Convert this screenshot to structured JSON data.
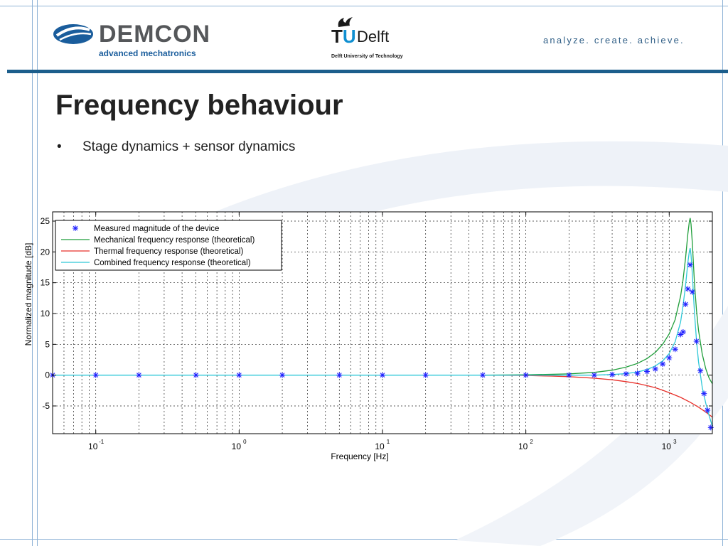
{
  "header": {
    "demcon_name": "DEMCON",
    "demcon_tagline": "advanced mechatronics",
    "tu_part": "T",
    "tu_u": "U",
    "delft_word": "Delft",
    "tu_subtitle": "Delft University of Technology",
    "tagline": "analyze. create. achieve."
  },
  "slide": {
    "title": "Frequency behaviour",
    "bullet_marker": "•",
    "bullet": "Stage dynamics + sensor dynamics"
  },
  "colors": {
    "measured": "#2020ff",
    "mechanical": "#1f9e3a",
    "thermal": "#e8302a",
    "combined": "#2ec8d8",
    "accent_bar": "#1c5e8c"
  },
  "chart_data": {
    "type": "line",
    "xscale": "log",
    "xlim": [
      0.05,
      2000
    ],
    "ylim": [
      -9.5,
      26.5
    ],
    "xlabel": "Frequency [Hz]",
    "ylabel": "Normalized magnitude [dB]",
    "grid": true,
    "legend_position": "top-left",
    "x_ticks": [
      {
        "value": 0.1,
        "base": "10",
        "exp": "-1"
      },
      {
        "value": 1,
        "base": "10",
        "exp": "0"
      },
      {
        "value": 10,
        "base": "10",
        "exp": "1"
      },
      {
        "value": 100,
        "base": "10",
        "exp": "2"
      },
      {
        "value": 1000,
        "base": "10",
        "exp": "3"
      }
    ],
    "y_ticks": [
      -5,
      0,
      5,
      10,
      15,
      20,
      25
    ],
    "series": [
      {
        "name": "Measured magnitude of the device",
        "style": "marker",
        "x": [
          0.05,
          0.1,
          0.2,
          0.5,
          1,
          2,
          5,
          10,
          20,
          50,
          100,
          200,
          300,
          400,
          500,
          600,
          700,
          800,
          900,
          1000,
          1100,
          1200,
          1250,
          1300,
          1350,
          1400,
          1450,
          1550,
          1650,
          1750,
          1850,
          1950
        ],
        "y": [
          0,
          0,
          0,
          0,
          0,
          0,
          0,
          0,
          0,
          0,
          0,
          0,
          0,
          0.1,
          0.2,
          0.3,
          0.6,
          1.0,
          1.8,
          2.8,
          4.2,
          6.6,
          7.0,
          11.5,
          14.0,
          17.9,
          13.5,
          5.5,
          0.7,
          -3.0,
          -5.7,
          -8.5
        ]
      },
      {
        "name": "Mechanical frequency response (theoretical)",
        "style": "line",
        "x": [
          50,
          100,
          200,
          300,
          400,
          500,
          600,
          700,
          800,
          900,
          1000,
          1100,
          1200,
          1250,
          1300,
          1350,
          1380,
          1400,
          1420,
          1450,
          1500,
          1550,
          1600,
          1700,
          1800,
          1900,
          2000
        ],
        "y": [
          0,
          0.05,
          0.2,
          0.45,
          0.8,
          1.3,
          1.9,
          2.7,
          3.7,
          5.0,
          6.7,
          9.0,
          12.8,
          15.5,
          19.0,
          23.0,
          24.8,
          25.5,
          24.5,
          21.5,
          15.0,
          10.5,
          7.3,
          3.4,
          1.0,
          -0.5,
          -1.4
        ]
      },
      {
        "name": "Thermal frequency response (theoretical)",
        "style": "line",
        "x": [
          50,
          100,
          150,
          200,
          300,
          400,
          500,
          600,
          700,
          800,
          900,
          1000,
          1200,
          1400,
          1600,
          1800,
          2000
        ],
        "y": [
          0,
          -0.05,
          -0.15,
          -0.25,
          -0.5,
          -0.75,
          -1.05,
          -1.35,
          -1.7,
          -2.05,
          -2.45,
          -2.85,
          -3.6,
          -4.4,
          -5.2,
          -6.0,
          -6.8
        ]
      },
      {
        "name": "Combined frequency response (theoretical)",
        "style": "line",
        "x": [
          0.05,
          50,
          100,
          200,
          300,
          400,
          500,
          600,
          700,
          800,
          900,
          1000,
          1100,
          1200,
          1250,
          1300,
          1350,
          1380,
          1400,
          1420,
          1450,
          1500,
          1550,
          1600,
          1700,
          1800,
          1900,
          2000
        ],
        "y": [
          0,
          0,
          0,
          0,
          0,
          0.1,
          0.25,
          0.5,
          0.9,
          1.5,
          2.3,
          3.5,
          5.4,
          8.6,
          11.3,
          14.6,
          18.3,
          20.0,
          20.6,
          19.5,
          16.5,
          10.2,
          5.6,
          2.2,
          -2.0,
          -4.6,
          -6.6,
          -8.3
        ]
      }
    ]
  }
}
